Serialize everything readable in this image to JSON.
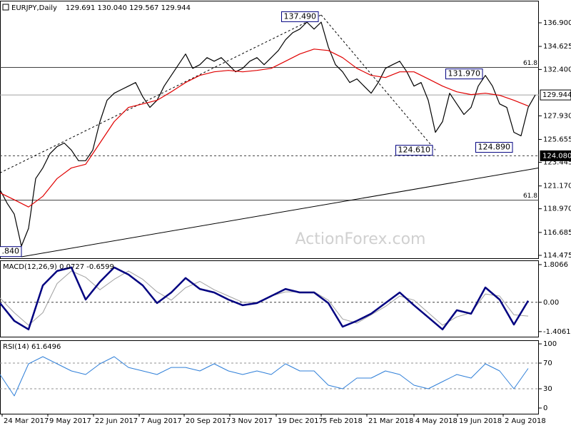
{
  "chart_data": [
    {
      "type": "line",
      "title": "EURJPY,Daily",
      "subtitle": "129.691 130.040 129.567 129.944",
      "watermark": "ActionForex.com",
      "xlim": [
        0,
        377.5
      ],
      "ylim": [
        114.2,
        139.03
      ],
      "yticks": [
        {
          "value": 136.9,
          "label": "136.900"
        },
        {
          "value": 134.625,
          "label": "134.625"
        },
        {
          "value": 132.4,
          "label": "132.400"
        },
        {
          "value": 127.93,
          "label": "127.930"
        },
        {
          "value": 125.655,
          "label": "125.655"
        },
        {
          "value": 123.445,
          "label": "123.445"
        },
        {
          "value": 121.17,
          "label": "121.170"
        },
        {
          "value": 118.97,
          "label": "118.970"
        },
        {
          "value": 116.685,
          "label": "116.685"
        },
        {
          "value": 114.475,
          "label": "114.475"
        }
      ],
      "hlines": [
        {
          "value": 132.6,
          "label": "61.8",
          "color": "#404040"
        },
        {
          "value": 119.8,
          "label": "61.8",
          "color": "#404040"
        },
        {
          "value": 124.08,
          "axis_label": "124.080",
          "dashed": true,
          "color": "#404040"
        },
        {
          "value": 129.944,
          "axis_label": "129.944",
          "color": "#a0a0a0"
        }
      ],
      "trendlines": [
        {
          "x": [
            0,
            225
          ],
          "y": [
            122.43,
            137.66
          ],
          "dashed": true
        },
        {
          "x": [
            225,
            305
          ],
          "y": [
            137.66,
            124.63
          ],
          "dashed": true
        },
        {
          "x": [
            15,
            377.5
          ],
          "y": [
            114.34,
            122.91
          ]
        }
      ],
      "annotations": [
        {
          "label": "137.490",
          "value": 137.49,
          "x": 224
        },
        {
          "label": "131.970",
          "value": 131.97,
          "x": 339
        },
        {
          "label": "124.610",
          "value": 124.61,
          "x": 304
        },
        {
          "label": "124.890",
          "value": 124.89,
          "x": 360
        },
        {
          "label": ".840",
          "value": 114.84,
          "x": 16
        }
      ],
      "series": [
        {
          "color": "#000000",
          "x": [
            0,
            5,
            10,
            15,
            20,
            25,
            30,
            35,
            40,
            45,
            50,
            55,
            60,
            65,
            70,
            75,
            80,
            85,
            90,
            95,
            100,
            105,
            110,
            115,
            120,
            125,
            130,
            135,
            140,
            145,
            150,
            155,
            160,
            165,
            170,
            175,
            180,
            185,
            190,
            195,
            200,
            205,
            210,
            215,
            220,
            225,
            230,
            235,
            240,
            245,
            250,
            255,
            260,
            265,
            270,
            275,
            280,
            285,
            290,
            295,
            300,
            305,
            310,
            315,
            320,
            325,
            330,
            335,
            340,
            345,
            350,
            355,
            360,
            365,
            370,
            375
          ],
          "values": [
            120.8,
            119.5,
            118.45,
            115.37,
            117.08,
            121.88,
            122.91,
            124.28,
            124.97,
            125.31,
            124.63,
            123.6,
            123.6,
            124.63,
            127.37,
            129.43,
            130.11,
            130.46,
            130.8,
            131.14,
            129.77,
            128.74,
            129.43,
            130.8,
            131.83,
            132.86,
            133.89,
            132.51,
            132.86,
            133.54,
            133.2,
            133.54,
            132.86,
            132.17,
            132.51,
            133.2,
            133.54,
            132.86,
            133.54,
            134.23,
            135.26,
            135.94,
            136.29,
            136.97,
            136.29,
            136.97,
            134.57,
            132.86,
            132.17,
            131.14,
            131.49,
            130.8,
            130.11,
            131.14,
            132.51,
            132.86,
            133.2,
            132.17,
            130.8,
            131.14,
            129.43,
            126.34,
            127.37,
            130.11,
            129.08,
            128.06,
            128.74,
            130.8,
            131.83,
            130.8,
            129.08,
            128.74,
            126.34,
            126,
            128.74,
            129.944
          ]
        },
        {
          "color": "#e00000",
          "x": [
            0,
            10,
            20,
            30,
            40,
            50,
            60,
            70,
            80,
            90,
            100,
            110,
            120,
            130,
            140,
            150,
            160,
            170,
            180,
            190,
            200,
            210,
            220,
            230,
            240,
            250,
            260,
            270,
            280,
            290,
            300,
            310,
            320,
            330,
            340,
            350,
            360,
            370
          ],
          "values": [
            120.51,
            119.83,
            119.14,
            120.17,
            121.88,
            122.91,
            123.26,
            125.31,
            127.37,
            128.74,
            129.08,
            129.43,
            130.25,
            131.14,
            131.83,
            132.17,
            132.31,
            132.17,
            132.31,
            132.51,
            133.2,
            133.89,
            134.37,
            134.23,
            133.54,
            132.51,
            131.83,
            131.62,
            132.17,
            132.17,
            131.49,
            130.8,
            130.25,
            129.98,
            130.11,
            129.91,
            129.43,
            128.88
          ]
        }
      ]
    },
    {
      "type": "line",
      "title": "MACD(12,26,9) 0.0727 -0.6599",
      "xlim": [
        0,
        377.5
      ],
      "ylim": [
        -1.65,
        2.01
      ],
      "yticks": [
        1.8066,
        {
          "value": 0,
          "label": "0.00"
        },
        -1.4061
      ],
      "hlines": [
        {
          "value": 0,
          "dashed": true,
          "color": "#404040"
        }
      ],
      "series": [
        {
          "color": "#a0a0a0",
          "width": 1,
          "x": [
            0,
            10,
            20,
            30,
            40,
            50,
            60,
            70,
            80,
            90,
            100,
            110,
            120,
            130,
            140,
            150,
            160,
            170,
            180,
            190,
            200,
            210,
            220,
            230,
            240,
            250,
            260,
            270,
            280,
            290,
            300,
            310,
            320,
            330,
            340,
            350,
            360,
            370
          ],
          "values": [
            0.2,
            -0.5,
            -1.1,
            -0.5,
            0.9,
            1.5,
            1.2,
            0.6,
            1.1,
            1.5,
            1.1,
            0.5,
            0.1,
            0.7,
            1.0,
            0.6,
            0.3,
            0.0,
            0.0,
            0.3,
            0.5,
            0.5,
            0.5,
            0.1,
            -0.8,
            -1.0,
            -0.6,
            -0.2,
            0.3,
            0.1,
            -0.5,
            -1.1,
            -0.7,
            -0.5,
            0.4,
            0.3,
            -0.6,
            -0.6599
          ]
        },
        {
          "color": "#000080",
          "width": 2.5,
          "x": [
            0,
            10,
            20,
            30,
            40,
            50,
            60,
            70,
            80,
            90,
            100,
            110,
            120,
            130,
            140,
            150,
            160,
            170,
            180,
            190,
            200,
            210,
            220,
            230,
            240,
            250,
            260,
            270,
            280,
            290,
            300,
            310,
            320,
            330,
            340,
            350,
            360,
            370
          ],
          "values": [
            -0.04,
            -0.89,
            -1.3,
            0.81,
            1.5,
            1.67,
            0.13,
            0.98,
            1.67,
            1.33,
            0.81,
            -0.04,
            0.47,
            1.16,
            0.64,
            0.47,
            0.13,
            -0.14,
            -0.04,
            0.3,
            0.64,
            0.47,
            0.47,
            -0.04,
            -1.17,
            -0.89,
            -0.55,
            -0.04,
            0.47,
            -0.14,
            -0.72,
            -1.3,
            -0.38,
            -0.55,
            0.71,
            0.13,
            -1.07,
            0.0727
          ]
        }
      ]
    },
    {
      "type": "line",
      "title": "RSI(14) 61.6496",
      "xlim": [
        0,
        377.5
      ],
      "ylim": [
        -8.9,
        105.6
      ],
      "yticks": [
        100,
        70,
        30,
        0
      ],
      "hlines": [
        {
          "value": 70,
          "dashed": true,
          "color": "#909090"
        },
        {
          "value": 30,
          "dashed": true,
          "color": "#909090"
        }
      ],
      "xticks": [
        {
          "value": 1.5,
          "label": "24 Mar 2017"
        },
        {
          "value": 33.5,
          "label": "9 May 2017"
        },
        {
          "value": 65.5,
          "label": "22 Jun 2017"
        },
        {
          "value": 97.5,
          "label": "7 Aug 2017"
        },
        {
          "value": 129,
          "label": "20 Sep 2017"
        },
        {
          "value": 161,
          "label": "3 Nov 2017"
        },
        {
          "value": 193.5,
          "label": "19 Dec 2017"
        },
        {
          "value": 225,
          "label": "5 Feb 2018"
        },
        {
          "value": 257,
          "label": "21 Mar 2018"
        },
        {
          "value": 290,
          "label": "4 May 2018"
        },
        {
          "value": 320.5,
          "label": "19 Jun 2018"
        },
        {
          "value": 352.5,
          "label": "2 Aug 2018"
        }
      ],
      "series": [
        {
          "color": "#2f7fd8",
          "width": 1,
          "x": [
            0,
            10,
            20,
            30,
            40,
            50,
            60,
            70,
            80,
            90,
            100,
            110,
            120,
            130,
            140,
            150,
            160,
            170,
            180,
            190,
            200,
            210,
            220,
            230,
            240,
            250,
            260,
            270,
            280,
            290,
            300,
            310,
            320,
            330,
            340,
            350,
            360,
            370
          ],
          "values": [
            52.2,
            18.9,
            68.9,
            80,
            68.9,
            57.8,
            52.2,
            68.9,
            80,
            63.3,
            57.8,
            52.2,
            63.3,
            63.3,
            57.8,
            68.9,
            57.8,
            52.2,
            57.8,
            52.2,
            68.9,
            57.8,
            57.8,
            35.6,
            30,
            46.7,
            46.7,
            57.8,
            52.2,
            35.6,
            30,
            41.1,
            52.2,
            46.7,
            68.9,
            57.8,
            30,
            61.6496
          ]
        }
      ]
    }
  ]
}
